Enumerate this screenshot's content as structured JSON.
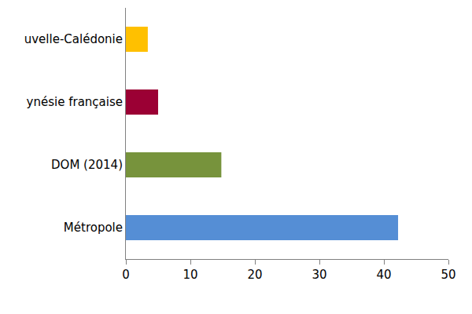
{
  "chart_data": {
    "type": "bar",
    "orientation": "horizontal",
    "categories": [
      "Métropole",
      "DOM (2014)",
      "ynésie française",
      "uvelle-Calédonie"
    ],
    "values": [
      42.2,
      14.8,
      5.0,
      3.4
    ],
    "colors": [
      "#558ed5",
      "#77933c",
      "#9b0034",
      "#ffc000"
    ],
    "xlim": [
      0,
      50
    ],
    "xticks": [
      0,
      10,
      20,
      30,
      40,
      50
    ],
    "grid": false
  }
}
